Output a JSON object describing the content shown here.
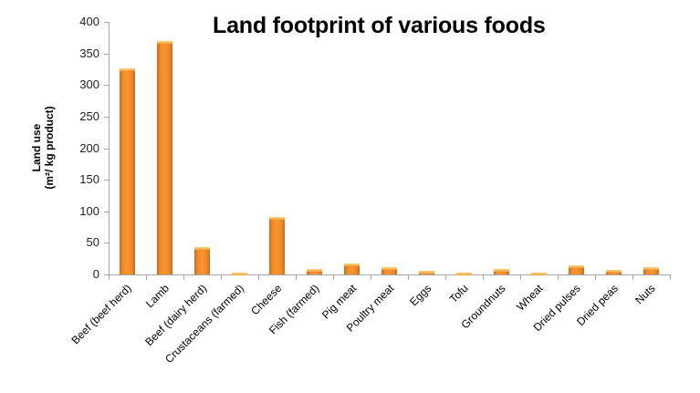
{
  "chart_data": {
    "type": "bar",
    "title": "Land footprint of various foods",
    "xlabel": "",
    "ylabel": "Land use (m²/ kg product)",
    "ylabel_lines": [
      "Land use",
      "(m²/ kg product)"
    ],
    "ylim": [
      0,
      400
    ],
    "yticks": [
      0,
      50,
      100,
      150,
      200,
      250,
      300,
      350,
      400
    ],
    "grid": false,
    "legend": null,
    "bar_color": "#f08a2a",
    "categories": [
      "Beef (beef herd)",
      "Lamb",
      "Beef (dairy herd)",
      "Crustaceans (farmed)",
      "Cheese",
      "Fish (farmed)",
      "Pig meat",
      "Poultry meat",
      "Eggs",
      "Tofu",
      "Groundnuts",
      "Wheat",
      "Dried pulses",
      "Dried peas",
      "Nuts"
    ],
    "values": [
      327,
      369,
      43,
      2,
      91,
      8,
      17,
      12,
      6,
      2,
      9,
      3,
      15,
      7,
      12
    ]
  }
}
